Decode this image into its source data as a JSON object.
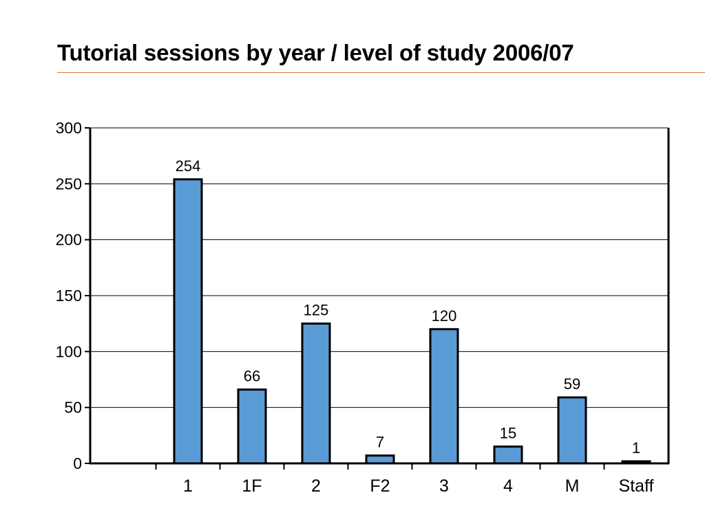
{
  "slide": {
    "title": "Tutorial sessions by year / level of study 2006/07",
    "rule_color": "#e8703c"
  },
  "chart_data": {
    "type": "bar",
    "categories": [
      "1",
      "1F",
      "2",
      "F2",
      "3",
      "4",
      "M",
      "Staff"
    ],
    "values": [
      254,
      66,
      125,
      7,
      120,
      15,
      59,
      1
    ],
    "data_labels": [
      "254",
      "66",
      "125",
      "7",
      "120",
      "15",
      "59",
      "1"
    ],
    "ylim": [
      0,
      300
    ],
    "yticks": [
      0,
      50,
      100,
      150,
      200,
      250,
      300
    ],
    "ytick_labels": [
      "0",
      "50",
      "100",
      "150",
      "200",
      "250",
      "300"
    ],
    "grid": true,
    "bar_color": "#5b9bd5",
    "bar_edge_color": "#000000",
    "title": "",
    "xlabel": "",
    "ylabel": ""
  }
}
